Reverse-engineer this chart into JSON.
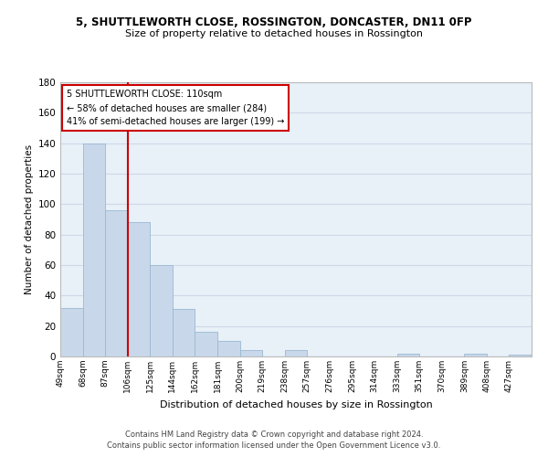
{
  "title": "5, SHUTTLEWORTH CLOSE, ROSSINGTON, DONCASTER, DN11 0FP",
  "subtitle": "Size of property relative to detached houses in Rossington",
  "xlabel": "Distribution of detached houses by size in Rossington",
  "ylabel": "Number of detached properties",
  "footer_line1": "Contains HM Land Registry data © Crown copyright and database right 2024.",
  "footer_line2": "Contains public sector information licensed under the Open Government Licence v3.0.",
  "bin_labels": [
    "49sqm",
    "68sqm",
    "87sqm",
    "106sqm",
    "125sqm",
    "144sqm",
    "162sqm",
    "181sqm",
    "200sqm",
    "219sqm",
    "238sqm",
    "257sqm",
    "276sqm",
    "295sqm",
    "314sqm",
    "333sqm",
    "351sqm",
    "370sqm",
    "389sqm",
    "408sqm",
    "427sqm"
  ],
  "bar_heights": [
    32,
    140,
    96,
    88,
    60,
    31,
    16,
    10,
    4,
    0,
    4,
    0,
    0,
    0,
    0,
    2,
    0,
    0,
    2,
    0,
    1
  ],
  "bar_color": "#c8d8ea",
  "bar_edge_color": "#9ab8d0",
  "grid_color": "#d0d8e8",
  "background_color": "#e8f0f8",
  "vline_x": 3,
  "vline_color": "#cc0000",
  "annotation_title": "5 SHUTTLEWORTH CLOSE: 110sqm",
  "annotation_line1": "← 58% of detached houses are smaller (284)",
  "annotation_line2": "41% of semi-detached houses are larger (199) →",
  "annotation_box_facecolor": "#ffffff",
  "annotation_box_edgecolor": "#cc0000",
  "ylim": [
    0,
    180
  ],
  "yticks": [
    0,
    20,
    40,
    60,
    80,
    100,
    120,
    140,
    160,
    180
  ]
}
